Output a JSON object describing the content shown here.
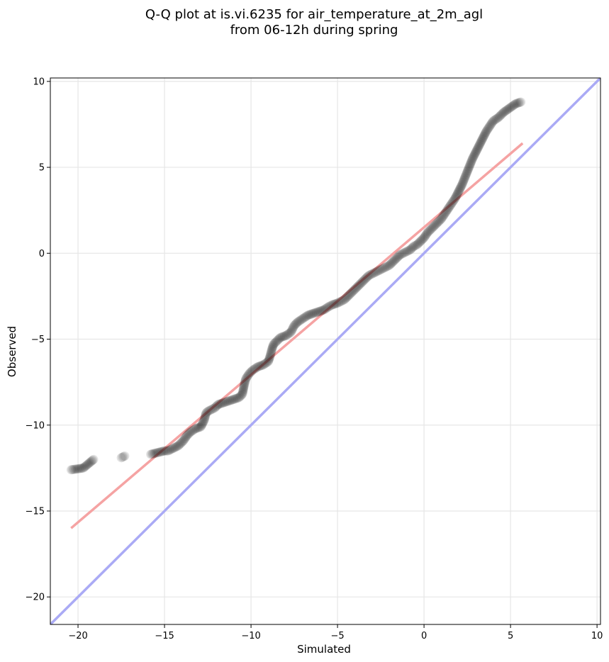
{
  "chart_data": {
    "type": "scatter",
    "title_lines": [
      "Q-Q plot at is.vi.6235 for air_temperature_at_2m_agl",
      "from 06-12h during spring"
    ],
    "xlabel": "Simulated",
    "ylabel": "Observed",
    "xlim": [
      -21.6,
      10.2
    ],
    "ylim": [
      -21.6,
      10.2
    ],
    "xticks": [
      -20,
      -15,
      -10,
      -5,
      0,
      5,
      10
    ],
    "yticks": [
      10,
      5,
      0,
      -5,
      -10,
      -15,
      -20
    ],
    "xtick_labels": [
      "−20",
      "−15",
      "−10",
      "−5",
      "0",
      "5",
      "10"
    ],
    "ytick_labels": [
      "10",
      "5",
      "0",
      "−5",
      "−10",
      "−15",
      "−20"
    ],
    "grid": true,
    "identity_line": {
      "color": "#aaaaf5",
      "from": [
        -21.6,
        -21.6
      ],
      "to": [
        10.2,
        10.2
      ]
    },
    "fit_line": {
      "color": "#f5a3a3",
      "from": [
        -20.4,
        -16.0
      ],
      "to": [
        5.7,
        6.4
      ]
    },
    "marker_color": "#000000",
    "points": [
      [
        -20.4,
        -12.6
      ],
      [
        -19.7,
        -12.5
      ],
      [
        -19.1,
        -12.0
      ],
      [
        -17.5,
        -11.9
      ],
      [
        -17.3,
        -11.8
      ],
      [
        -15.8,
        -11.7
      ],
      [
        -15.0,
        -11.5
      ],
      [
        -14.8,
        -11.5
      ],
      [
        -14.2,
        -11.2
      ],
      [
        -13.9,
        -10.9
      ],
      [
        -13.7,
        -10.6
      ],
      [
        -13.5,
        -10.4
      ],
      [
        -13.2,
        -10.2
      ],
      [
        -12.9,
        -10.1
      ],
      [
        -12.7,
        -9.7
      ],
      [
        -12.6,
        -9.3
      ],
      [
        -12.5,
        -9.2
      ],
      [
        -12.3,
        -9.1
      ],
      [
        -12.1,
        -9.0
      ],
      [
        -11.9,
        -8.8
      ],
      [
        -11.6,
        -8.7
      ],
      [
        -11.3,
        -8.6
      ],
      [
        -11.0,
        -8.5
      ],
      [
        -10.7,
        -8.4
      ],
      [
        -10.5,
        -8.2
      ],
      [
        -10.4,
        -7.7
      ],
      [
        -10.3,
        -7.3
      ],
      [
        -10.1,
        -7.0
      ],
      [
        -9.9,
        -6.8
      ],
      [
        -9.6,
        -6.6
      ],
      [
        -9.3,
        -6.5
      ],
      [
        -9.0,
        -6.3
      ],
      [
        -8.9,
        -6.0
      ],
      [
        -8.8,
        -5.6
      ],
      [
        -8.7,
        -5.3
      ],
      [
        -8.5,
        -5.1
      ],
      [
        -8.3,
        -4.9
      ],
      [
        -8.0,
        -4.8
      ],
      [
        -7.7,
        -4.6
      ],
      [
        -7.6,
        -4.4
      ],
      [
        -7.5,
        -4.2
      ],
      [
        -7.3,
        -4.0
      ],
      [
        -7.0,
        -3.8
      ],
      [
        -6.7,
        -3.6
      ],
      [
        -6.4,
        -3.5
      ],
      [
        -6.1,
        -3.4
      ],
      [
        -5.8,
        -3.3
      ],
      [
        -5.5,
        -3.1
      ],
      [
        -5.3,
        -3.0
      ],
      [
        -5.0,
        -2.9
      ],
      [
        -4.8,
        -2.8
      ],
      [
        -4.6,
        -2.7
      ],
      [
        -4.4,
        -2.5
      ],
      [
        -4.2,
        -2.3
      ],
      [
        -4.0,
        -2.1
      ],
      [
        -3.8,
        -1.9
      ],
      [
        -3.6,
        -1.7
      ],
      [
        -3.4,
        -1.5
      ],
      [
        -3.2,
        -1.3
      ],
      [
        -3.0,
        -1.2
      ],
      [
        -2.8,
        -1.1
      ],
      [
        -2.6,
        -1.0
      ],
      [
        -2.4,
        -0.9
      ],
      [
        -2.2,
        -0.8
      ],
      [
        -2.0,
        -0.7
      ],
      [
        -1.8,
        -0.5
      ],
      [
        -1.6,
        -0.3
      ],
      [
        -1.4,
        -0.1
      ],
      [
        -1.2,
        0.0
      ],
      [
        -1.0,
        0.1
      ],
      [
        -0.8,
        0.2
      ],
      [
        -0.6,
        0.4
      ],
      [
        -0.4,
        0.5
      ],
      [
        -0.2,
        0.7
      ],
      [
        0.0,
        0.9
      ],
      [
        0.2,
        1.2
      ],
      [
        0.4,
        1.4
      ],
      [
        0.6,
        1.6
      ],
      [
        0.8,
        1.8
      ],
      [
        1.0,
        2.0
      ],
      [
        1.2,
        2.3
      ],
      [
        1.4,
        2.6
      ],
      [
        1.6,
        2.9
      ],
      [
        1.8,
        3.2
      ],
      [
        2.0,
        3.6
      ],
      [
        2.2,
        4.0
      ],
      [
        2.4,
        4.5
      ],
      [
        2.6,
        5.0
      ],
      [
        2.8,
        5.5
      ],
      [
        3.0,
        5.9
      ],
      [
        3.2,
        6.3
      ],
      [
        3.4,
        6.7
      ],
      [
        3.6,
        7.1
      ],
      [
        3.8,
        7.4
      ],
      [
        4.0,
        7.7
      ],
      [
        4.3,
        7.9
      ],
      [
        4.6,
        8.2
      ],
      [
        5.3,
        8.7
      ],
      [
        5.6,
        8.8
      ]
    ]
  }
}
